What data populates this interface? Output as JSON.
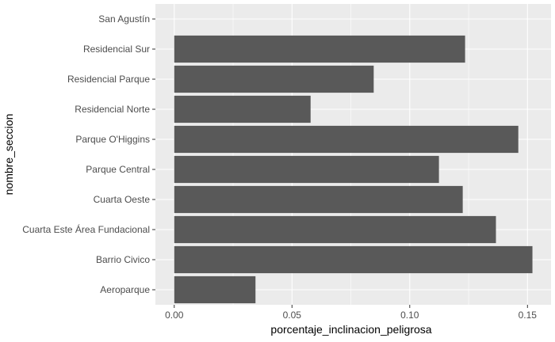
{
  "chart_data": {
    "type": "bar",
    "orientation": "horizontal",
    "xlabel": "porcentaje_inclinacion_peligrosa",
    "ylabel": "nombre_seccion",
    "xlim": [
      -0.008,
      0.16
    ],
    "xticks": [
      0.0,
      0.05,
      0.1,
      0.15
    ],
    "xtick_labels": [
      "0.00",
      "0.05",
      "0.10",
      "0.15"
    ],
    "grid": true,
    "categories": [
      "Aeroparque",
      "Barrio Civico",
      "Cuarta Este Área Fundacional",
      "Cuarta Oeste",
      "Parque Central",
      "Parque O'Higgins",
      "Residencial Norte",
      "Residencial Parque",
      "Residencial Sur",
      "San Agustín"
    ],
    "values": [
      0.0345,
      0.1521,
      0.1366,
      0.1225,
      0.1124,
      0.1461,
      0.0579,
      0.0847,
      0.1235,
      0.0
    ],
    "colors": {
      "panel": "#ebebeb",
      "grid_major": "#ffffff",
      "bar": "#595959",
      "tick_text": "#4d4d4d",
      "tick_mark": "#333333"
    }
  }
}
